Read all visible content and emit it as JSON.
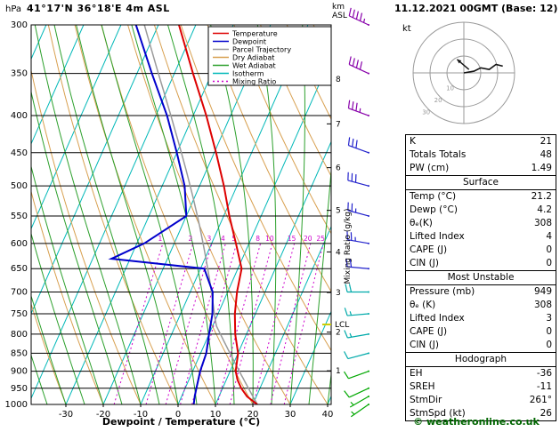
{
  "header": {
    "pressure_unit": "hPa",
    "station_title": "41°17'N 36°18'E  4m ASL",
    "datetime_title": "11.12.2021 00GMT (Base: 12)",
    "km_label": "km",
    "asl_label": "ASL"
  },
  "axes": {
    "x_label": "Dewpoint / Temperature (°C)",
    "mixing_axis_label": "Mixing Ratio (g/kg)",
    "lcl_label": "LCL",
    "pressure_ticks": [
      300,
      350,
      400,
      450,
      500,
      550,
      600,
      650,
      700,
      750,
      800,
      850,
      900,
      950,
      1000
    ],
    "temp_ticks": [
      -30,
      -20,
      -10,
      0,
      10,
      20,
      30,
      40
    ],
    "km_ticks": [
      1,
      2,
      3,
      4,
      5,
      6,
      7,
      8
    ]
  },
  "legend": [
    {
      "label": "Temperature",
      "color": "#dd0000",
      "dash": ""
    },
    {
      "label": "Dewpoint",
      "color": "#0000cc",
      "dash": ""
    },
    {
      "label": "Parcel Trajectory",
      "color": "#9a9a9a",
      "dash": ""
    },
    {
      "label": "Dry Adiabat",
      "color": "#d8a050",
      "dash": ""
    },
    {
      "label": "Wet Adiabat",
      "color": "#2ca02c",
      "dash": ""
    },
    {
      "label": "Isotherm",
      "color": "#00b8b8",
      "dash": ""
    },
    {
      "label": "Mixing Ratio",
      "color": "#cc00cc",
      "dash": "2,3"
    }
  ],
  "chart_data": {
    "type": "line",
    "subtype": "skew-t-log-p-sounding",
    "title": "41°17'N 36°18'E 4m ASL — 11.12.2021 00GMT (Base: 12)",
    "xlabel": "Dewpoint / Temperature (°C)",
    "ylabel": "hPa",
    "x_range_c": [
      -30,
      40
    ],
    "pressure_range_hpa": [
      300,
      1000
    ],
    "mixing_ratio_lines_gkg": [
      1,
      2,
      3,
      4,
      5,
      8,
      10,
      15,
      20,
      25
    ],
    "lcl_pressure_hpa": 776,
    "temperature_profile": [
      [
        1000,
        21.2
      ],
      [
        975,
        17.5
      ],
      [
        950,
        15.0
      ],
      [
        925,
        13.0
      ],
      [
        900,
        11.5
      ],
      [
        850,
        10.0
      ],
      [
        800,
        7.0
      ],
      [
        750,
        4.5
      ],
      [
        700,
        2.5
      ],
      [
        650,
        1.0
      ],
      [
        600,
        -3.5
      ],
      [
        550,
        -8.5
      ],
      [
        500,
        -13.5
      ],
      [
        450,
        -19.5
      ],
      [
        400,
        -26.5
      ],
      [
        350,
        -35.0
      ],
      [
        300,
        -44.5
      ]
    ],
    "dewpoint_profile": [
      [
        1000,
        4.2
      ],
      [
        975,
        3.5
      ],
      [
        950,
        3.0
      ],
      [
        925,
        2.5
      ],
      [
        900,
        2.0
      ],
      [
        850,
        1.5
      ],
      [
        800,
        0.0
      ],
      [
        750,
        -1.5
      ],
      [
        700,
        -4.0
      ],
      [
        650,
        -9.0
      ],
      [
        630,
        -35.0
      ],
      [
        600,
        -28.0
      ],
      [
        550,
        -20.0
      ],
      [
        500,
        -24.0
      ],
      [
        450,
        -30.0
      ],
      [
        400,
        -37.0
      ],
      [
        350,
        -46.0
      ],
      [
        300,
        -56.0
      ]
    ],
    "parcel_surface": {
      "p": 1000,
      "t": 21.2,
      "td": 4.2
    },
    "winds": [
      {
        "p": 300,
        "spd": 45,
        "dir": 295
      },
      {
        "p": 350,
        "spd": 40,
        "dir": 295
      },
      {
        "p": 400,
        "spd": 35,
        "dir": 290
      },
      {
        "p": 450,
        "spd": 30,
        "dir": 290
      },
      {
        "p": 500,
        "spd": 30,
        "dir": 285
      },
      {
        "p": 550,
        "spd": 25,
        "dir": 285
      },
      {
        "p": 600,
        "spd": 25,
        "dir": 280
      },
      {
        "p": 650,
        "spd": 20,
        "dir": 275
      },
      {
        "p": 700,
        "spd": 20,
        "dir": 270
      },
      {
        "p": 750,
        "spd": 15,
        "dir": 265
      },
      {
        "p": 800,
        "spd": 15,
        "dir": 260
      },
      {
        "p": 850,
        "spd": 10,
        "dir": 255
      },
      {
        "p": 900,
        "spd": 10,
        "dir": 250
      },
      {
        "p": 950,
        "spd": 10,
        "dir": 245
      },
      {
        "p": 975,
        "spd": 5,
        "dir": 240
      },
      {
        "p": 1000,
        "spd": 5,
        "dir": 235
      }
    ]
  },
  "hodograph": {
    "kt_label": "kt",
    "rings_kt": [
      10,
      20,
      30
    ],
    "ring_labels": [
      "10",
      "20",
      "30"
    ],
    "trace_uv_kt": [
      [
        0,
        0
      ],
      [
        6,
        1
      ],
      [
        10,
        3
      ],
      [
        15,
        2
      ],
      [
        19,
        5
      ],
      [
        23,
        4
      ]
    ],
    "storm_arrow_uv_kt": [
      [
        3,
        2
      ],
      [
        -4,
        8
      ]
    ],
    "storm_dir_deg": "261°",
    "storm_speed_kt": 26
  },
  "panel": {
    "table_groups": [
      {
        "rows": [
          [
            "K",
            "21"
          ],
          [
            "Totals Totals",
            "48"
          ],
          [
            "PW (cm)",
            "1.49"
          ]
        ]
      },
      {
        "title": "Surface",
        "rows": [
          [
            "Temp (°C)",
            "21.2"
          ],
          [
            "Dewp (°C)",
            "4.2"
          ],
          [
            "θₑ(K)",
            "308"
          ],
          [
            "Lifted Index",
            "4"
          ],
          [
            "CAPE (J)",
            "0"
          ],
          [
            "CIN (J)",
            "0"
          ]
        ]
      },
      {
        "title": "Most Unstable",
        "rows": [
          [
            "Pressure (mb)",
            "949"
          ],
          [
            "θₑ (K)",
            "308"
          ],
          [
            "Lifted Index",
            "3"
          ],
          [
            "CAPE (J)",
            "0"
          ],
          [
            "CIN (J)",
            "0"
          ]
        ]
      },
      {
        "title": "Hodograph",
        "rows": [
          [
            "EH",
            "-36"
          ],
          [
            "SREH",
            "-11"
          ],
          [
            "StmDir",
            "261°"
          ],
          [
            "StmSpd (kt)",
            "26"
          ]
        ]
      }
    ]
  },
  "copyright": "© weatheronline.co.uk",
  "colors": {
    "temperature": "#dd0000",
    "dewpoint": "#0000cc",
    "parcel": "#9a9a9a",
    "dry_adiabat": "#d8a050",
    "wet_adiabat": "#2ca02c",
    "isotherm": "#00b8b8",
    "mixing_ratio": "#cc00cc",
    "grid": "#000000",
    "barb_green": "#00a800",
    "barb_cyan": "#00aaaa",
    "barb_blue": "#2222cc",
    "barb_purple": "#8800aa",
    "lcl_tick": "#cccc00",
    "copyright_green": "#006600",
    "hodo_ring": "#999999",
    "hodo_trace": "#111111"
  }
}
